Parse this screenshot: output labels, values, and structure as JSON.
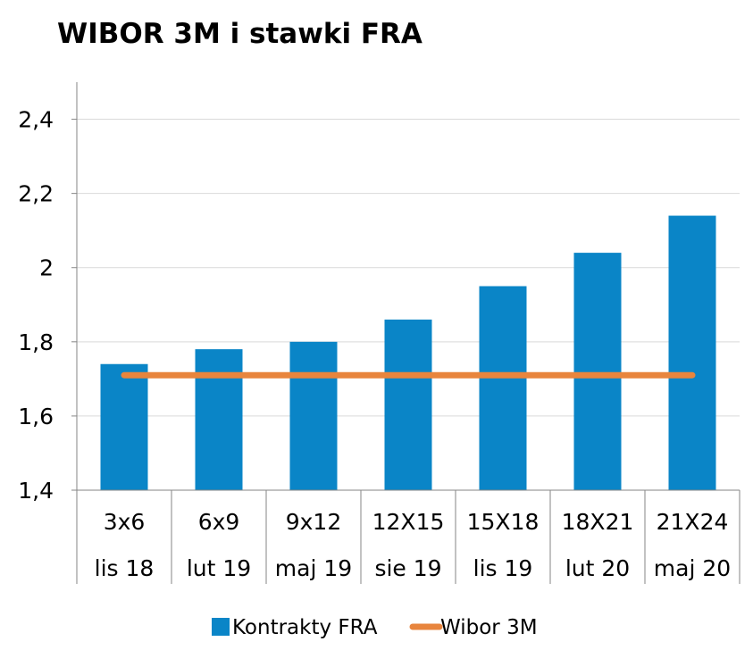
{
  "chart_data": {
    "type": "bar",
    "title": "WIBOR 3M i stawki FRA",
    "categories": [
      {
        "line1": "3x6",
        "line2": "lis 18"
      },
      {
        "line1": "6x9",
        "line2": "lut 19"
      },
      {
        "line1": "9x12",
        "line2": "maj 19"
      },
      {
        "line1": "12X15",
        "line2": "sie 19"
      },
      {
        "line1": "15X18",
        "line2": "lis 19"
      },
      {
        "line1": "18X21",
        "line2": "lut 20"
      },
      {
        "line1": "21X24",
        "line2": "maj 20"
      }
    ],
    "series": [
      {
        "name": "Kontrakty FRA",
        "type": "bar",
        "color": "#0a85c7",
        "values": [
          1.74,
          1.78,
          1.8,
          1.86,
          1.95,
          2.04,
          2.14
        ]
      },
      {
        "name": "Wibor 3M",
        "type": "line",
        "color": "#e8853d",
        "values": [
          1.71,
          1.71,
          1.71,
          1.71,
          1.71,
          1.71,
          1.71
        ]
      }
    ],
    "ylim": [
      1.4,
      2.5
    ],
    "yticks": [
      "1,4",
      "1,6",
      "1,8",
      "2",
      "2,2",
      "2,4"
    ],
    "ytick_values": [
      1.4,
      1.6,
      1.8,
      2.0,
      2.2,
      2.4
    ],
    "grid": true,
    "legend_position": "bottom"
  }
}
